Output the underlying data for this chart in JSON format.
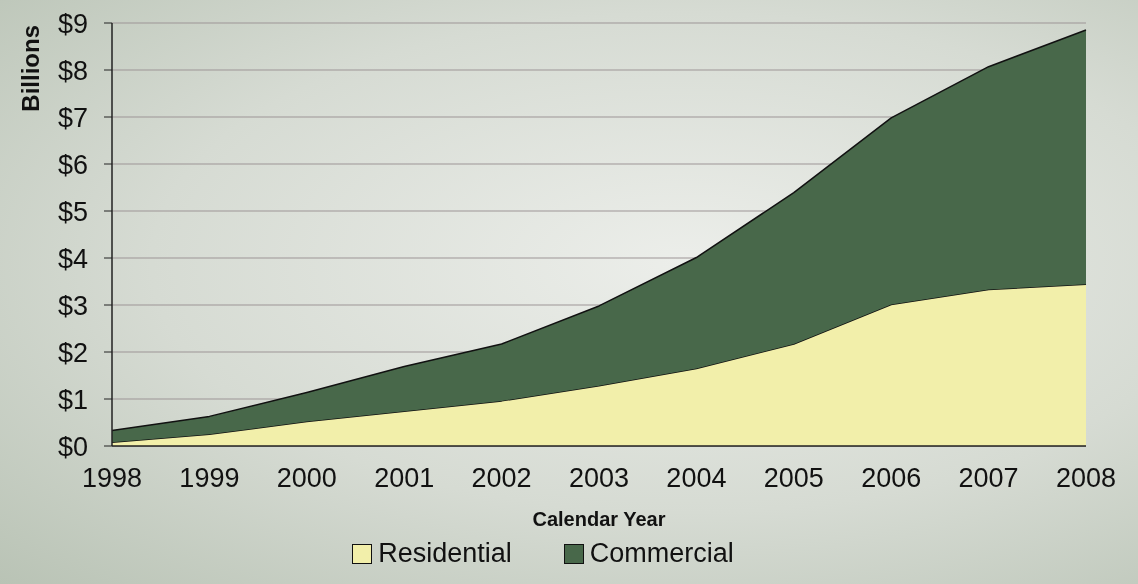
{
  "chart_data": {
    "type": "area",
    "stacked": true,
    "xlabel": "Calendar Year",
    "ylabel": "Billions",
    "categories": [
      "1998",
      "1999",
      "2000",
      "2001",
      "2002",
      "2003",
      "2004",
      "2005",
      "2006",
      "2007",
      "2008"
    ],
    "series": [
      {
        "name": "Residential",
        "color": "#f2efaa",
        "values": [
          0.08,
          0.25,
          0.52,
          0.74,
          0.96,
          1.28,
          1.65,
          2.17,
          3.01,
          3.33,
          3.44
        ]
      },
      {
        "name": "Commercial",
        "color": "#48684a",
        "values": [
          0.25,
          0.38,
          0.62,
          0.95,
          1.21,
          1.7,
          2.36,
          3.22,
          3.97,
          4.74,
          5.41
        ]
      }
    ],
    "ylim": [
      0,
      9
    ],
    "yticks": [
      {
        "value": 0,
        "label": "$0"
      },
      {
        "value": 1,
        "label": "$1"
      },
      {
        "value": 2,
        "label": "$2"
      },
      {
        "value": 3,
        "label": "$3"
      },
      {
        "value": 4,
        "label": "$4"
      },
      {
        "value": 5,
        "label": "$5"
      },
      {
        "value": 6,
        "label": "$6"
      },
      {
        "value": 7,
        "label": "$7"
      },
      {
        "value": 8,
        "label": "$8"
      },
      {
        "value": 9,
        "label": "$9"
      }
    ],
    "grid": "y",
    "legend": "bottom"
  }
}
